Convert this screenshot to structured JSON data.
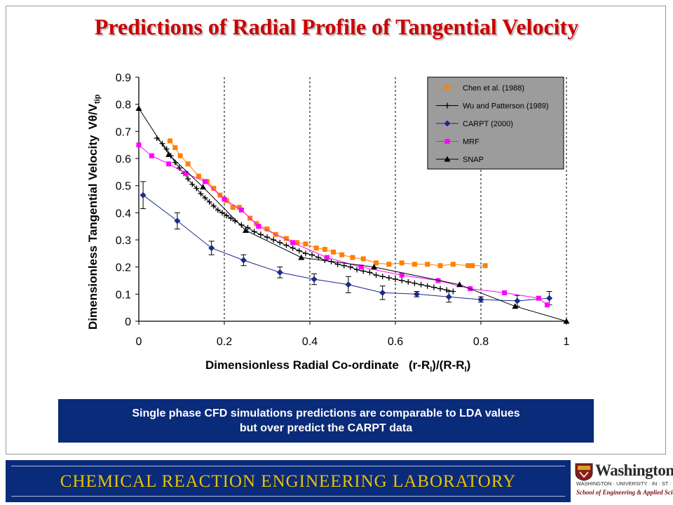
{
  "slide": {
    "title": "Predictions of Radial Profile of Tangential Velocity",
    "callout_line1": "Single phase CFD simulations predictions are comparable to LDA values",
    "callout_line2": "but over predict the CARPT data",
    "footer": "CHEMICAL  REACTION  ENGINEERING  LABORATORY",
    "logo": {
      "wordmark": "Washington",
      "line1": "WASHINGTON · UNIVERSITY · IN · ST · LOUIS",
      "line2": "School of Engineering & Applied Science"
    }
  },
  "colors": {
    "title": "#cc0000",
    "navy": "#0a2a7a",
    "footer_text": "#e8c200",
    "legend_bg": "#9c9c9c"
  },
  "chart_data": {
    "type": "line",
    "title": "",
    "xlabel": "Dimensionless Radial Co-ordinate   (r-R",
    "xlabel_sub1": "I",
    "xlabel_mid": ")/(R-R",
    "xlabel_sub2": "I",
    "xlabel_end": ")",
    "ylabel": "Dimensionless Tangential Velocity",
    "ylabel_symbol": "Vθ/V",
    "ylabel_symbol_sub": "tip",
    "xlim": [
      0,
      1
    ],
    "ylim": [
      0,
      0.9
    ],
    "x_ticks": [
      0,
      0.2,
      0.4,
      0.6,
      0.8,
      1
    ],
    "x_tick_labels": [
      "0",
      "0.2",
      "0.4",
      "0.6",
      "0.8",
      "1"
    ],
    "y_ticks": [
      0,
      0.1,
      0.2,
      0.3,
      0.4,
      0.5,
      0.6,
      0.7,
      0.8,
      0.9
    ],
    "y_tick_labels": [
      "0",
      "0.1",
      "0.2",
      "0.3",
      "0.4",
      "0.5",
      "0.6",
      "0.7",
      "0.8",
      "0.9"
    ],
    "grid": "dashed at x ticks only",
    "legend_position": "top-right",
    "series": [
      {
        "name": "Chen et al. (1988)",
        "color": "#ff7f00",
        "marker": "square",
        "x": [
          0.073,
          0.085,
          0.097,
          0.115,
          0.14,
          0.16,
          0.175,
          0.19,
          0.205,
          0.22,
          0.235,
          0.26,
          0.275,
          0.3,
          0.32,
          0.345,
          0.37,
          0.39,
          0.415,
          0.435,
          0.455,
          0.475,
          0.5,
          0.525,
          0.555,
          0.585,
          0.615,
          0.645,
          0.675,
          0.705,
          0.735,
          0.77,
          0.78,
          0.81
        ],
        "y": [
          0.665,
          0.64,
          0.61,
          0.58,
          0.535,
          0.515,
          0.49,
          0.465,
          0.445,
          0.42,
          0.42,
          0.38,
          0.36,
          0.34,
          0.32,
          0.305,
          0.29,
          0.285,
          0.27,
          0.265,
          0.255,
          0.245,
          0.235,
          0.23,
          0.215,
          0.21,
          0.215,
          0.21,
          0.21,
          0.205,
          0.21,
          0.205,
          0.205,
          0.205
        ]
      },
      {
        "name": "Wu and Patterson (1989)",
        "color": "#000000",
        "marker": "plus",
        "x": [
          0.042,
          0.055,
          0.065,
          0.075,
          0.085,
          0.095,
          0.105,
          0.115,
          0.125,
          0.135,
          0.145,
          0.155,
          0.165,
          0.175,
          0.185,
          0.195,
          0.205,
          0.215,
          0.225,
          0.24,
          0.255,
          0.27,
          0.285,
          0.3,
          0.315,
          0.33,
          0.345,
          0.36,
          0.375,
          0.39,
          0.405,
          0.42,
          0.435,
          0.45,
          0.465,
          0.48,
          0.495,
          0.51,
          0.525,
          0.54,
          0.555,
          0.57,
          0.585,
          0.6,
          0.615,
          0.63,
          0.645,
          0.66,
          0.675,
          0.69,
          0.705,
          0.72,
          0.735
        ],
        "y": [
          0.675,
          0.655,
          0.635,
          0.61,
          0.585,
          0.565,
          0.545,
          0.525,
          0.505,
          0.49,
          0.47,
          0.455,
          0.44,
          0.425,
          0.41,
          0.4,
          0.39,
          0.38,
          0.37,
          0.355,
          0.345,
          0.33,
          0.32,
          0.31,
          0.3,
          0.29,
          0.28,
          0.27,
          0.26,
          0.25,
          0.245,
          0.235,
          0.225,
          0.22,
          0.21,
          0.205,
          0.2,
          0.19,
          0.185,
          0.18,
          0.17,
          0.165,
          0.16,
          0.155,
          0.15,
          0.145,
          0.14,
          0.135,
          0.13,
          0.125,
          0.12,
          0.115,
          0.11
        ]
      },
      {
        "name": "CARPT (2000)",
        "color": "#1c2a8c",
        "marker": "diamond",
        "x": [
          0.01,
          0.09,
          0.17,
          0.245,
          0.33,
          0.41,
          0.49,
          0.57,
          0.65,
          0.725,
          0.8,
          0.885,
          0.96
        ],
        "y": [
          0.465,
          0.37,
          0.27,
          0.225,
          0.18,
          0.155,
          0.135,
          0.105,
          0.1,
          0.09,
          0.08,
          0.075,
          0.085
        ],
        "error": [
          0.05,
          0.03,
          0.025,
          0.02,
          0.02,
          0.02,
          0.03,
          0.025,
          0.01,
          0.02,
          0.01,
          0.02,
          0.025
        ]
      },
      {
        "name": "MRF",
        "color": "#ff00ff",
        "marker": "square",
        "x": [
          0.0,
          0.03,
          0.07,
          0.11,
          0.155,
          0.2,
          0.24,
          0.28,
          0.36,
          0.44,
          0.52,
          0.615,
          0.7,
          0.775,
          0.855,
          0.935,
          0.955
        ],
        "y": [
          0.65,
          0.61,
          0.58,
          0.545,
          0.515,
          0.45,
          0.41,
          0.35,
          0.29,
          0.235,
          0.2,
          0.17,
          0.15,
          0.12,
          0.105,
          0.085,
          0.06
        ]
      },
      {
        "name": "SNAP",
        "color": "#000000",
        "marker": "triangle",
        "x": [
          0.0,
          0.07,
          0.15,
          0.25,
          0.38,
          0.55,
          0.75,
          0.88,
          1.0
        ],
        "y": [
          0.785,
          0.615,
          0.495,
          0.335,
          0.235,
          0.2,
          0.135,
          0.055,
          0.0
        ]
      }
    ]
  }
}
